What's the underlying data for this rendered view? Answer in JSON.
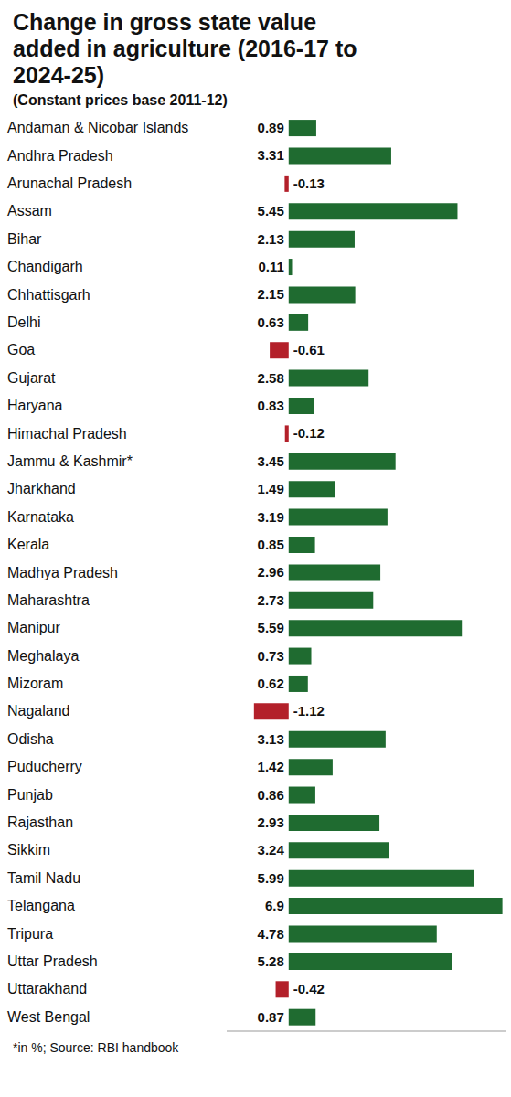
{
  "chart_data": {
    "type": "bar",
    "orientation": "horizontal",
    "title": "Change in gross state value added in agriculture (2016-17 to 2024-25)",
    "subtitle": "(Constant prices base 2011-12)",
    "categories": [
      "Andaman & Nicobar Islands",
      "Andhra Pradesh",
      "Arunachal Pradesh",
      "Assam",
      "Bihar",
      "Chandigarh",
      "Chhattisgarh",
      "Delhi",
      "Goa",
      "Gujarat",
      "Haryana",
      "Himachal Pradesh",
      "Jammu & Kashmir*",
      "Jharkhand",
      "Karnataka",
      "Kerala",
      "Madhya Pradesh",
      "Maharashtra",
      "Manipur",
      "Meghalaya",
      "Mizoram",
      "Nagaland",
      "Odisha",
      "Puducherry",
      "Punjab",
      "Rajasthan",
      "Sikkim",
      "Tamil Nadu",
      "Telangana",
      "Tripura",
      "Uttar Pradesh",
      "Uttarakhand",
      "West Bengal"
    ],
    "values": [
      0.89,
      3.31,
      -0.13,
      5.45,
      2.13,
      0.11,
      2.15,
      0.63,
      -0.61,
      2.58,
      0.83,
      -0.12,
      3.45,
      1.49,
      3.19,
      0.85,
      2.96,
      2.73,
      5.59,
      0.73,
      0.62,
      -1.12,
      3.13,
      1.42,
      0.86,
      2.93,
      3.24,
      5.99,
      6.9,
      4.78,
      5.28,
      -0.42,
      0.87
    ],
    "colors": [
      "#1f6b30",
      "#1f6b30",
      "#b3202a",
      "#1f6b30",
      "#1f6b30",
      "#1f6b30",
      "#1f6b30",
      "#1f6b30",
      "#b3202a",
      "#1f6b30",
      "#1f6b30",
      "#b3202a",
      "#1f6b30",
      "#1f6b30",
      "#1f6b30",
      "#1f6b30",
      "#1f6b30",
      "#1f6b30",
      "#1f6b30",
      "#1f6b30",
      "#1f6b30",
      "#b3202a",
      "#1f6b30",
      "#1f6b30",
      "#1f6b30",
      "#1f6b30",
      "#1f6b30",
      "#1f6b30",
      "#1f6b30",
      "#1f6b30",
      "#1f6b30",
      "#b3202a",
      "#1f6b30"
    ],
    "xlim": [
      -2,
      7
    ],
    "tick_labels": "y",
    "data_labels": true,
    "annotations": [
      "*in %; Source: RBI handbook"
    ]
  }
}
